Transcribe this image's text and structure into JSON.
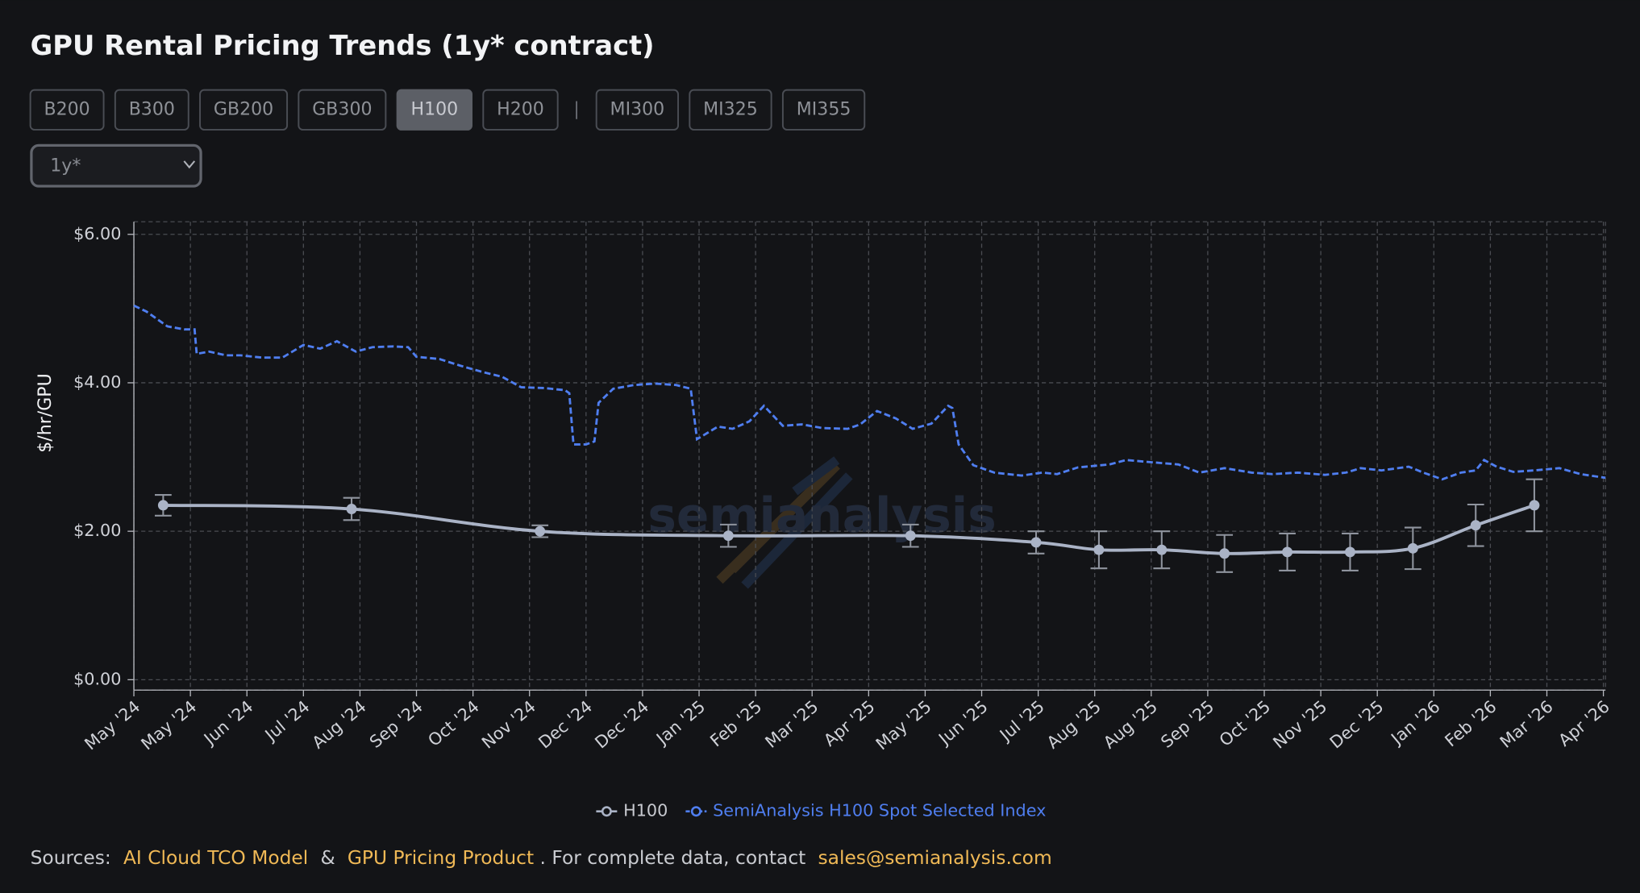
{
  "title": "GPU Rental Pricing Trends (1y* contract)",
  "tab_groups": [
    [
      "B200",
      "B300",
      "GB200",
      "GB300",
      "H100",
      "H200"
    ],
    [
      "MI300",
      "MI325",
      "MI355"
    ]
  ],
  "separator": "|",
  "selected_tab": "H100",
  "dropdown": "1y*",
  "watermark": "semianalysis",
  "sources": {
    "prefix": "Sources:",
    "link1": "AI Cloud TCO Model",
    "amp": "&",
    "link2": "GPU Pricing Product",
    "mid": ". For complete data, contact",
    "email": "sales@semianalysis.com"
  },
  "chart_data": {
    "type": "line",
    "ylabel": "$/hr/GPU",
    "xlim": [
      0,
      703
    ],
    "xticks": [
      {
        "value": 0,
        "label": "May '24"
      },
      {
        "value": 27,
        "label": "May '24"
      },
      {
        "value": 54,
        "label": "Jun '24"
      },
      {
        "value": 81,
        "label": "Jul '24"
      },
      {
        "value": 108,
        "label": "Aug '24"
      },
      {
        "value": 135,
        "label": "Sep '24"
      },
      {
        "value": 162,
        "label": "Oct '24"
      },
      {
        "value": 189,
        "label": "Nov '24"
      },
      {
        "value": 216,
        "label": "Dec '24"
      },
      {
        "value": 243,
        "label": "Dec '24"
      },
      {
        "value": 270,
        "label": "Jan '25"
      },
      {
        "value": 297,
        "label": "Feb '25"
      },
      {
        "value": 324,
        "label": "Mar '25"
      },
      {
        "value": 351,
        "label": "Apr '25"
      },
      {
        "value": 378,
        "label": "May '25"
      },
      {
        "value": 405,
        "label": "Jun '25"
      },
      {
        "value": 432,
        "label": "Jul '25"
      },
      {
        "value": 459,
        "label": "Aug '25"
      },
      {
        "value": 486,
        "label": "Aug '25"
      },
      {
        "value": 513,
        "label": "Sep '25"
      },
      {
        "value": 540,
        "label": "Oct '25"
      },
      {
        "value": 567,
        "label": "Nov '25"
      },
      {
        "value": 594,
        "label": "Dec '25"
      },
      {
        "value": 621,
        "label": "Jan '26"
      },
      {
        "value": 648,
        "label": "Feb '26"
      },
      {
        "value": 675,
        "label": "Mar '26"
      },
      {
        "value": 702,
        "label": "Apr '26"
      }
    ],
    "ylim": [
      -0.14,
      6.17
    ],
    "yticks": [
      {
        "value": 0,
        "label": "$0.00"
      },
      {
        "value": 2,
        "label": "$2.00"
      },
      {
        "value": 4,
        "label": "$4.00"
      },
      {
        "value": 6,
        "label": "$6.00"
      }
    ],
    "grid": true,
    "series": [
      {
        "name": "H100",
        "color": "#aab3c6",
        "style": "solid",
        "x": [
          14,
          104,
          194,
          284,
          371,
          431,
          461,
          491,
          521,
          551,
          581,
          611,
          641,
          669
        ],
        "values": [
          2.35,
          2.3,
          2.0,
          1.94,
          1.94,
          1.85,
          1.75,
          1.75,
          1.7,
          1.72,
          1.72,
          1.77,
          2.08,
          2.35
        ],
        "errors": [
          0.14,
          0.15,
          0.08,
          0.15,
          0.15,
          0.15,
          0.25,
          0.25,
          0.25,
          0.25,
          0.25,
          0.28,
          0.28,
          0.35
        ]
      },
      {
        "name": "SemiAnalysis H100 Spot Selected Index",
        "color": "#4f7ef0",
        "style": "dashed",
        "x": [
          0,
          6,
          16,
          24,
          29,
          30,
          36,
          44,
          51,
          61,
          71,
          81,
          89,
          97,
          106,
          114,
          124,
          131,
          135,
          146,
          156,
          166,
          176,
          185,
          196,
          206,
          208,
          210,
          216,
          220,
          222,
          229,
          239,
          249,
          259,
          266,
          269,
          279,
          286,
          294,
          301,
          310,
          319,
          329,
          341,
          347,
          355,
          364,
          372,
          381,
          389,
          391,
          394,
          401,
          411,
          424,
          434,
          441,
          451,
          466,
          474,
          486,
          499,
          509,
          521,
          534,
          544,
          556,
          569,
          579,
          586,
          596,
          609,
          616,
          625,
          634,
          641,
          645,
          651,
          659,
          669,
          681,
          691,
          703
        ],
        "values": [
          5.04,
          4.96,
          4.76,
          4.72,
          4.72,
          4.39,
          4.42,
          4.37,
          4.37,
          4.34,
          4.34,
          4.51,
          4.46,
          4.56,
          4.42,
          4.48,
          4.49,
          4.48,
          4.35,
          4.32,
          4.23,
          4.15,
          4.08,
          3.94,
          3.93,
          3.9,
          3.86,
          3.17,
          3.17,
          3.21,
          3.73,
          3.92,
          3.97,
          3.99,
          3.97,
          3.92,
          3.24,
          3.41,
          3.38,
          3.48,
          3.69,
          3.42,
          3.44,
          3.39,
          3.38,
          3.44,
          3.62,
          3.52,
          3.38,
          3.45,
          3.69,
          3.66,
          3.17,
          2.89,
          2.79,
          2.75,
          2.79,
          2.77,
          2.86,
          2.9,
          2.96,
          2.93,
          2.9,
          2.79,
          2.85,
          2.79,
          2.77,
          2.79,
          2.76,
          2.79,
          2.85,
          2.82,
          2.87,
          2.79,
          2.7,
          2.79,
          2.82,
          2.96,
          2.87,
          2.8,
          2.82,
          2.85,
          2.77,
          2.72
        ]
      }
    ]
  }
}
